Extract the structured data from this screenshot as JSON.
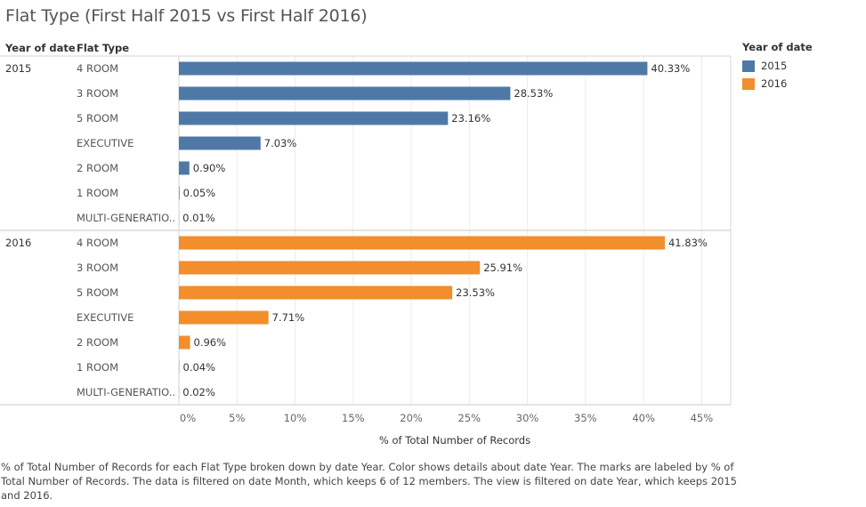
{
  "title": "Flat Type (First Half 2015 vs First Half 2016)",
  "headers": {
    "year": "Year of date",
    "flat_type": "Flat Type"
  },
  "legend": {
    "title": "Year of date",
    "items": [
      {
        "label": "2015",
        "color": "#4e79a7"
      },
      {
        "label": "2016",
        "color": "#f28e2b"
      }
    ]
  },
  "caption": "% of Total Number of Records for each Flat Type broken down by date Year.  Color shows details about date Year.  The marks are labeled by % of Total Number of Records. The data is filtered on date Month, which keeps 6 of 12 members. The view is filtered on date Year, which keeps 2015 and 2016.",
  "chart_data": {
    "type": "bar",
    "orientation": "horizontal",
    "xlabel": "% of Total Number of Records",
    "xlim": [
      0,
      47.5
    ],
    "xticks": [
      0,
      5,
      10,
      15,
      20,
      25,
      30,
      35,
      40,
      45
    ],
    "xtick_labels": [
      "0%",
      "5%",
      "10%",
      "15%",
      "20%",
      "25%",
      "30%",
      "35%",
      "40%",
      "45%"
    ],
    "grid": true,
    "legend_position": "right",
    "categories": [
      "4 ROOM",
      "3 ROOM",
      "5 ROOM",
      "EXECUTIVE",
      "2 ROOM",
      "1 ROOM",
      "MULTI-GENERATIO.."
    ],
    "series": [
      {
        "name": "2015",
        "color": "#4e79a7",
        "values": [
          40.33,
          28.53,
          23.16,
          7.03,
          0.9,
          0.05,
          0.01
        ],
        "labels": [
          "40.33%",
          "28.53%",
          "23.16%",
          "7.03%",
          "0.90%",
          "0.05%",
          "0.01%"
        ]
      },
      {
        "name": "2016",
        "color": "#f28e2b",
        "values": [
          41.83,
          25.91,
          23.53,
          7.71,
          0.96,
          0.04,
          0.02
        ],
        "labels": [
          "41.83%",
          "25.91%",
          "23.53%",
          "7.71%",
          "0.96%",
          "0.04%",
          "0.02%"
        ]
      }
    ]
  }
}
